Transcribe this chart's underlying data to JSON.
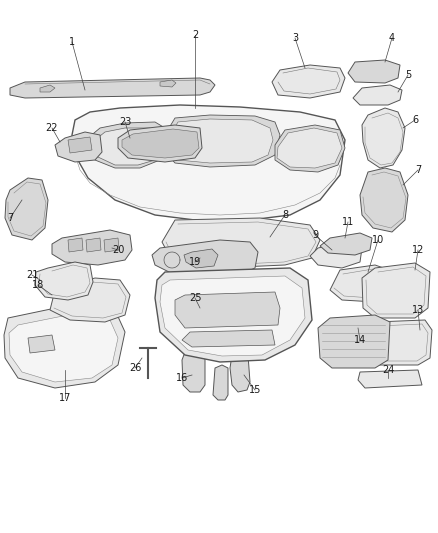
{
  "bg_color": "#ffffff",
  "fig_width": 4.38,
  "fig_height": 5.33,
  "dpi": 100,
  "edge_color": "#555555",
  "fill_light": "#e8e8e8",
  "fill_med": "#d8d8d8",
  "fill_dark": "#c8c8c8",
  "fill_white": "#f5f5f5",
  "text_color": "#1a1a1a",
  "line_color": "#444444",
  "font_size": 7.0,
  "leader_lw": 0.5,
  "component_lw": 0.7
}
